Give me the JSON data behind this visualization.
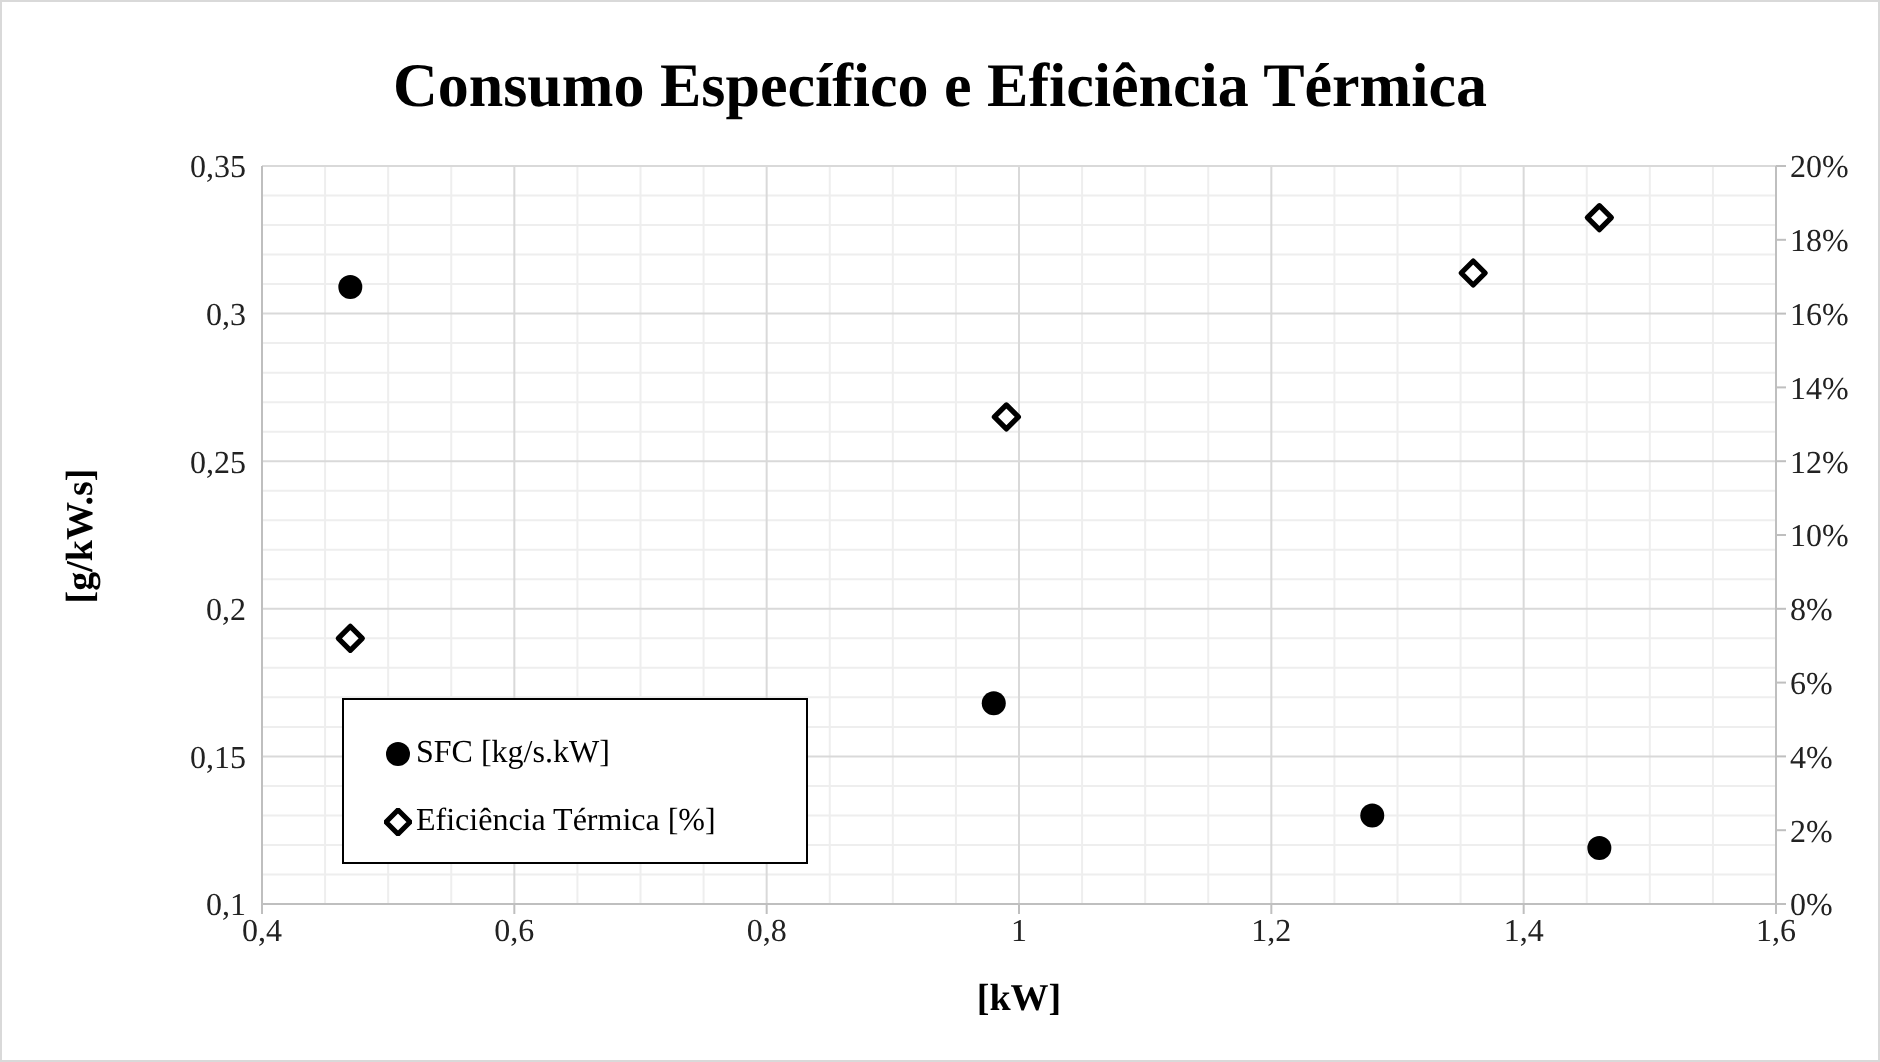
{
  "chart_data": {
    "type": "scatter",
    "title": "Consumo Específico e Eficiência Térmica",
    "xlabel": "[kW]",
    "ylabel": "[g/kW.s]",
    "series": [
      {
        "name": "SFC [kg/s.kW]",
        "color": "#000000",
        "marker": "circle",
        "x": [
          0.47,
          0.98,
          1.28,
          1.46
        ],
        "values": [
          0.309,
          0.168,
          0.13,
          0.119
        ]
      },
      {
        "name": "Eficiência Térmica [%]",
        "color": "#000000",
        "marker": "diamond",
        "axis": "y2",
        "x": [
          0.47,
          0.99,
          1.36,
          1.46
        ],
        "values": [
          7.2,
          13.2,
          17.1,
          18.6
        ]
      }
    ],
    "xlim": [
      0.4,
      1.6
    ],
    "xticks": [
      {
        "value": 0.4,
        "label": "0,4"
      },
      {
        "value": 0.6,
        "label": "0,6"
      },
      {
        "value": 0.8,
        "label": "0,8"
      },
      {
        "value": 1,
        "label": "1"
      },
      {
        "value": 1.2,
        "label": "1,2"
      },
      {
        "value": 1.4,
        "label": "1,4"
      },
      {
        "value": 1.6,
        "label": "1,6"
      }
    ],
    "ylim": [
      0.1,
      0.35
    ],
    "yticks": [
      {
        "value": 0.1,
        "label": "0,1"
      },
      {
        "value": 0.15,
        "label": "0,15"
      },
      {
        "value": 0.2,
        "label": "0,2"
      },
      {
        "value": 0.25,
        "label": "0,25"
      },
      {
        "value": 0.3,
        "label": "0,3"
      },
      {
        "value": 0.35,
        "label": "0,35"
      }
    ],
    "y2lim": [
      0,
      20
    ],
    "y2ticks": [
      {
        "value": 0,
        "label": "0%"
      },
      {
        "value": 2,
        "label": "2%"
      },
      {
        "value": 4,
        "label": "4%"
      },
      {
        "value": 6,
        "label": "6%"
      },
      {
        "value": 8,
        "label": "8%"
      },
      {
        "value": 10,
        "label": "10%"
      },
      {
        "value": 12,
        "label": "12%"
      },
      {
        "value": 14,
        "label": "14%"
      },
      {
        "value": 16,
        "label": "16%"
      },
      {
        "value": 18,
        "label": "18%"
      },
      {
        "value": 20,
        "label": "20%"
      }
    ],
    "grid": true,
    "legend": "bottom left"
  }
}
